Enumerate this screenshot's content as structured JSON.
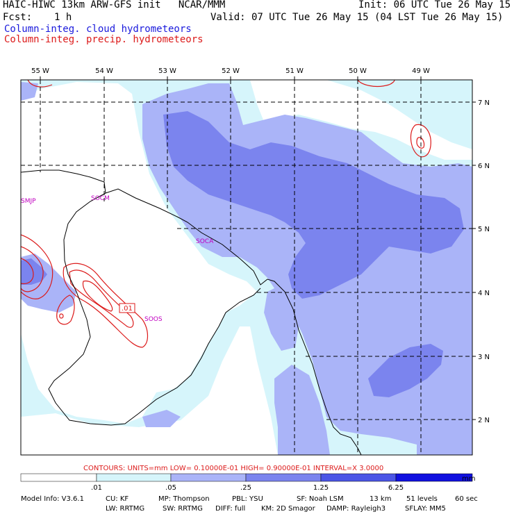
{
  "header": {
    "title_left": "HAIC-HIWC 13km ARW-GFS init   NCAR/MMM",
    "init": "Init: 06 UTC Tue 26 May 15",
    "fcst_label": "Fcst:",
    "fcst_value": "1 h",
    "valid": "Valid: 07 UTC Tue 26 May 15 (04 LST Tue 26 May 15)",
    "legend_cloud": "Column-integ. cloud hydrometeors",
    "legend_precip": "Column-integ. precip. hydrometeors"
  },
  "colors": {
    "cloud_series": "#1a1adc",
    "precip_series": "#dc1a1a",
    "scale": [
      "#ffffff",
      "#d6f5fb",
      "#aab4f8",
      "#7b84ee",
      "#4b55e6",
      "#1111e0"
    ]
  },
  "axes": {
    "top_labels": [
      "55 W",
      "54 W",
      "53 W",
      "52 W",
      "51 W",
      "50 W",
      "49 W"
    ],
    "right_labels": [
      "7 N",
      "6 N",
      "5 N",
      "4 N",
      "3 N",
      "2 N"
    ]
  },
  "stations": [
    "SMJP",
    "SOCM",
    "SOCA",
    "SOOS"
  ],
  "contour_label": ".01",
  "contours_info": "CONTOURS:  UNITS=mm  LOW= 0.10000E-01  HIGH= 0.90000E-01  INTERVAL=X  3.0000",
  "colorbar": {
    "ticks": [
      ".01",
      ".05",
      ".25",
      "1.25",
      "6.25"
    ],
    "units": "mm"
  },
  "model_info": {
    "line1": [
      "Model Info: V3.6.1",
      "CU: KF",
      "MP: Thompson",
      "PBL: YSU",
      "SF: Noah LSM",
      "13 km",
      "51 levels",
      "60 sec"
    ],
    "line2": [
      "LW: RRTMG",
      "SW: RRTMG",
      "DIFF: full",
      "KM: 2D Smagor",
      "DAMP: Rayleigh3",
      "SFLAY: MM5"
    ]
  }
}
